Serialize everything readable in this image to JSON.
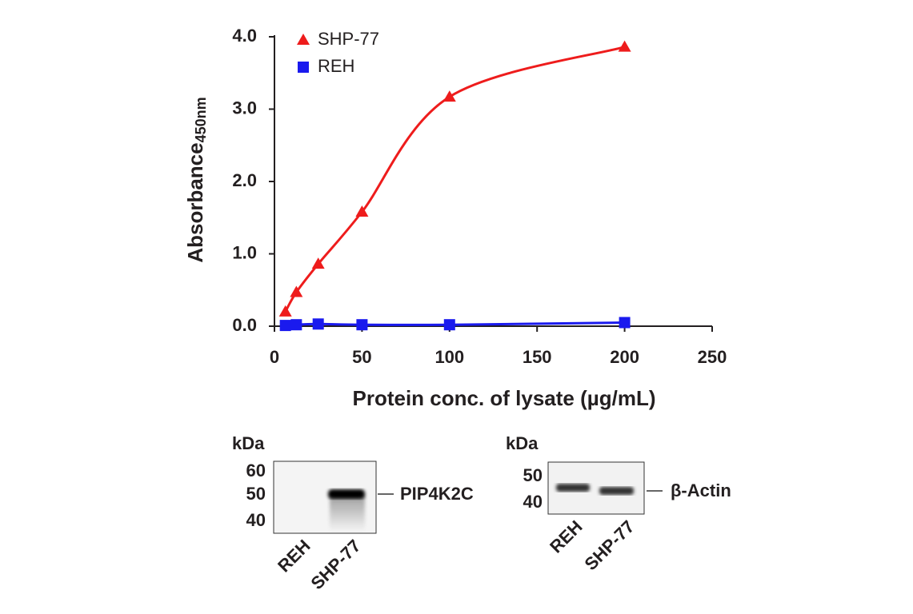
{
  "chart_data": {
    "type": "scatter",
    "y_label": "Absorbance",
    "y_label_sub": "450nm",
    "x_label": "Protein conc. of lysate (µg/mL)",
    "xlim": [
      0,
      250
    ],
    "xticks": [
      0,
      50,
      100,
      150,
      200,
      250
    ],
    "ylim": [
      0,
      4
    ],
    "yticks": [
      {
        "value": 0,
        "label": "0.0"
      },
      {
        "value": 1,
        "label": "1.0"
      },
      {
        "value": 2,
        "label": "2.0"
      },
      {
        "value": 3,
        "label": "3.0"
      },
      {
        "value": 4,
        "label": "4.0"
      }
    ],
    "legend": "upper left",
    "series": [
      {
        "name": "SHP-77",
        "color": "#ee1c1c",
        "marker": "triangle",
        "x": [
          6.25,
          12.5,
          25,
          50,
          100,
          200
        ],
        "values": [
          0.2,
          0.47,
          0.86,
          1.58,
          3.17,
          3.86
        ]
      },
      {
        "name": "REH",
        "color": "#1a1aee",
        "marker": "square",
        "x": [
          6.25,
          12.5,
          25,
          50,
          100,
          200
        ],
        "values": [
          0.01,
          0.02,
          0.03,
          0.02,
          0.02,
          0.05
        ]
      }
    ]
  },
  "blots": [
    {
      "unit": "kDa",
      "markers": [
        "60",
        "50",
        "40"
      ],
      "target": "PIP4K2C",
      "lanes": [
        "REH",
        "SHP-77"
      ]
    },
    {
      "unit": "kDa",
      "markers": [
        "50",
        "40"
      ],
      "target": "β-Actin",
      "lanes": [
        "REH",
        "SHP-77"
      ]
    }
  ]
}
